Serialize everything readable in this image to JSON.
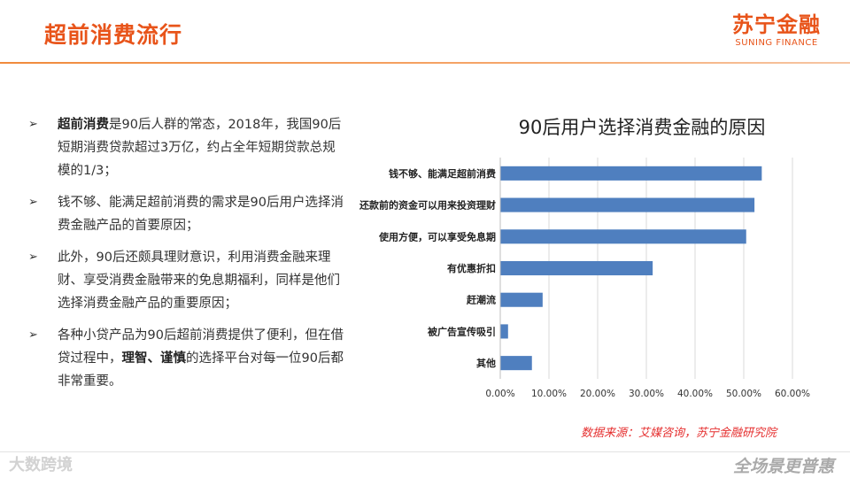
{
  "header": {
    "title": "超前消费流行",
    "logo_cn": "苏宁金融",
    "logo_en": "SUNING FINANCE"
  },
  "bullets": [
    {
      "bold": "超前消费",
      "text": "是90后人群的常态，2018年，我国90后短期消费贷款超过3万亿，约占全年短期贷款总规模的1/3；"
    },
    {
      "text": "钱不够、能满足超前消费的需求是90后用户选择消费金融产品的首要原因；"
    },
    {
      "text": "此外，90后还颇具理财意识，利用消费金融来理财、享受消费金融带来的免息期福利，同样是他们选择消费金融产品的重要原因；"
    },
    {
      "pre": "各种小贷产品为90后超前消费提供了便利，但在借贷过程中，",
      "bold": "理智、谨慎",
      "post": "的选择平台对每一位90后都非常重要。"
    }
  ],
  "bullet_marker": "➢",
  "chart_data": {
    "type": "bar",
    "orientation": "horizontal",
    "title": "90后用户选择消费金融的原因",
    "categories": [
      "钱不够、能满足超前消费",
      "还款前的资金可以用来投资理财",
      "使用方便，可以享受免息期",
      "有优惠折扣",
      "赶潮流",
      "被广告宣传吸引",
      "其他"
    ],
    "values": [
      0.537,
      0.522,
      0.505,
      0.313,
      0.087,
      0.016,
      0.065
    ],
    "xlim": [
      0,
      0.6
    ],
    "xticks": [
      "0.00%",
      "10.00%",
      "20.00%",
      "30.00%",
      "40.00%",
      "50.00%",
      "60.00%"
    ],
    "bar_color": "#4f7fbf",
    "grid": true
  },
  "source": "数据来源：艾媒咨询，苏宁金融研究院",
  "footer": {
    "watermark": "大数跨境",
    "slogan": "全场景更普惠"
  },
  "colors": {
    "accent": "#e8541a",
    "bar": "#4f7fbf",
    "source": "#e52e2e"
  }
}
